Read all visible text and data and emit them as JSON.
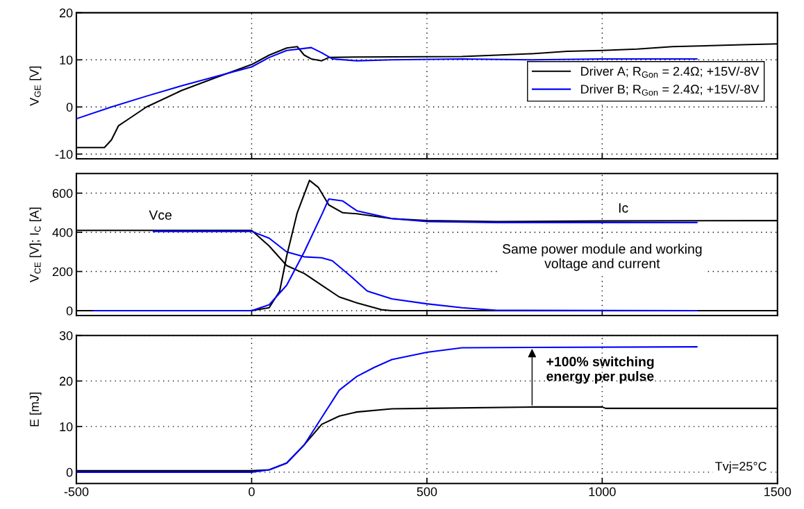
{
  "chart_data": [
    {
      "type": "line",
      "ylabel": "V$_{GE}$ [V]",
      "xlim": [
        -500,
        1500
      ],
      "xticks": [
        -500,
        0,
        500,
        1000,
        1500
      ],
      "ylim": [
        -11,
        20
      ],
      "yticks": [
        -10,
        0,
        10,
        20
      ],
      "grid": true,
      "legend": "right",
      "tick_labels": "y",
      "series": [
        {
          "name": "Driver A; R$_{Gon}$ = 2.4Ω; +15V/-8V",
          "color": "#000000",
          "x": [
            -500,
            -420,
            -400,
            -380,
            -350,
            -300,
            -200,
            -100,
            0,
            50,
            100,
            130,
            150,
            170,
            200,
            220,
            300,
            600,
            700,
            800,
            900,
            1000,
            1100,
            1200,
            1400,
            1500
          ],
          "values": [
            -8.6,
            -8.6,
            -7,
            -4,
            -2.5,
            0,
            3.5,
            6.3,
            9,
            11,
            12.5,
            12.8,
            11,
            10.2,
            9.8,
            10.5,
            10.6,
            10.7,
            11,
            11.3,
            11.8,
            12,
            12.3,
            12.8,
            13.2,
            13.4
          ]
        },
        {
          "name": "Driver B; R$_{Gon}$ = 2.4Ω; +15V/-8V",
          "color": "#0000ff",
          "x": [
            -500,
            -400,
            -300,
            -200,
            -100,
            0,
            50,
            100,
            170,
            200,
            230,
            300,
            400,
            600,
            800,
            1000,
            1270
          ],
          "values": [
            -2.5,
            0,
            2.3,
            4.5,
            6.5,
            8.5,
            10.5,
            12,
            12.6,
            11.5,
            10.2,
            9.8,
            10,
            10.2,
            10,
            10.2,
            10.2
          ]
        }
      ]
    },
    {
      "type": "line",
      "ylabel": "V$_{CE}$ [V]; I$_{C}$ [A]",
      "xlim": [
        -500,
        1500
      ],
      "xticks": [
        -500,
        0,
        500,
        1000,
        1500
      ],
      "ylim": [
        -25,
        700
      ],
      "yticks": [
        0,
        200,
        400,
        600
      ],
      "grid": true,
      "tick_labels": "y",
      "annotations": [
        "Vce",
        "Ic",
        "Same power module and working\nvoltage and current"
      ],
      "series": [
        {
          "color": "#000000",
          "x": [
            -500,
            0,
            50,
            100,
            150,
            200,
            250,
            300,
            370,
            400,
            1500
          ],
          "values": [
            410,
            410,
            330,
            230,
            190,
            130,
            70,
            40,
            5,
            0,
            0
          ]
        },
        {
          "color": "#0000ff",
          "x": [
            -280,
            0,
            50,
            100,
            150,
            200,
            230,
            280,
            330,
            400,
            500,
            600,
            700,
            1270
          ],
          "values": [
            405,
            405,
            370,
            300,
            275,
            270,
            255,
            180,
            100,
            60,
            35,
            15,
            2,
            0
          ]
        },
        {
          "color": "#000000",
          "x": [
            -500,
            0,
            50,
            80,
            100,
            130,
            165,
            190,
            220,
            260,
            300,
            400,
            500,
            700,
            1000,
            1500
          ],
          "values": [
            0,
            0,
            15,
            100,
            280,
            500,
            665,
            630,
            540,
            500,
            495,
            470,
            460,
            455,
            458,
            460
          ]
        },
        {
          "color": "#0000ff",
          "x": [
            -450,
            0,
            50,
            100,
            150,
            200,
            220,
            260,
            300,
            400,
            500,
            700,
            1000,
            1270
          ],
          "values": [
            0,
            0,
            30,
            130,
            300,
            490,
            570,
            560,
            510,
            470,
            455,
            450,
            450,
            450
          ]
        }
      ]
    },
    {
      "type": "line",
      "ylabel": "E [mJ]",
      "xlim": [
        -500,
        1500
      ],
      "xticks": [
        -500,
        0,
        500,
        1000,
        1500
      ],
      "ylim": [
        -2.5,
        30
      ],
      "yticks": [
        0,
        10,
        20,
        30
      ],
      "grid": true,
      "annotations": [
        {
          "text": "+100% switching\nenergy per pulse",
          "x": 800,
          "y": 27.5
        },
        "Tvj=25°C"
      ],
      "series": [
        {
          "color": "#000000",
          "x": [
            -500,
            0,
            50,
            100,
            150,
            200,
            250,
            300,
            400,
            500,
            800,
            1000,
            1010,
            1500
          ],
          "values": [
            0.3,
            0.3,
            0.5,
            2,
            6,
            10.5,
            12.3,
            13.2,
            13.9,
            14,
            14.3,
            14.3,
            14,
            14
          ]
        },
        {
          "color": "#0000ff",
          "x": [
            -500,
            0,
            50,
            100,
            150,
            200,
            250,
            300,
            350,
            400,
            500,
            600,
            1270
          ],
          "values": [
            0,
            0,
            0.5,
            2,
            6,
            12,
            18,
            21,
            23,
            24.7,
            26.3,
            27.3,
            27.5
          ]
        }
      ]
    }
  ]
}
